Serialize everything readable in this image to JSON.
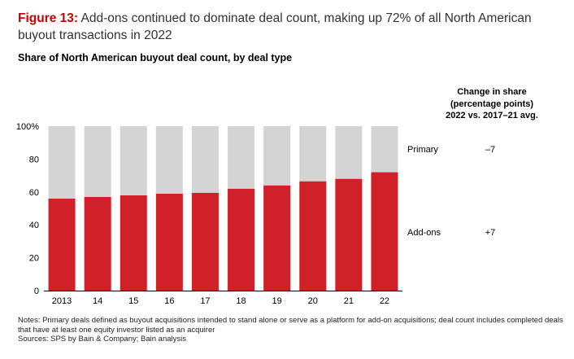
{
  "header": {
    "figure_label": "Figure 13:",
    "title": "Add-ons continued to dominate deal count, making up 72% of all North American buyout transactions in 2022",
    "subtitle": "Share of North American buyout deal count, by deal type"
  },
  "change_column": {
    "header_lines": [
      "Change in share",
      "(percentage points)",
      "2022 vs. 2017–21 avg."
    ],
    "rows": [
      {
        "series": "Primary",
        "value": "–7"
      },
      {
        "series": "Add-ons",
        "value": "+7"
      }
    ]
  },
  "chart_data": {
    "type": "bar",
    "stacked": true,
    "title": "Share of North American buyout deal count, by deal type",
    "categories": [
      "2013",
      "14",
      "15",
      "16",
      "17",
      "18",
      "19",
      "20",
      "21",
      "22"
    ],
    "series": [
      {
        "name": "Add-ons",
        "color": "#d0202a",
        "values": [
          56,
          57,
          58,
          59,
          59.5,
          62,
          64,
          66.5,
          68,
          72
        ]
      },
      {
        "name": "Primary",
        "color": "#d4d4d4",
        "values": [
          44,
          43,
          42,
          41,
          40.5,
          38,
          36,
          33.5,
          32,
          28
        ]
      }
    ],
    "ylim": [
      0,
      100
    ],
    "yticks": [
      "0",
      "20",
      "40",
      "60",
      "80",
      "100%"
    ],
    "xlabel": "",
    "ylabel": "",
    "legend": "right, inline labels"
  },
  "notes": {
    "lines": [
      "Notes: Primary deals defined as buyout acquisitions intended to stand alone or serve as a platform for add-on acquisitions; deal count includes completed deals",
      "that have at least one equity investor listed as an acquirer",
      "Sources: SPS by Bain & Company; Bain analysis"
    ]
  }
}
